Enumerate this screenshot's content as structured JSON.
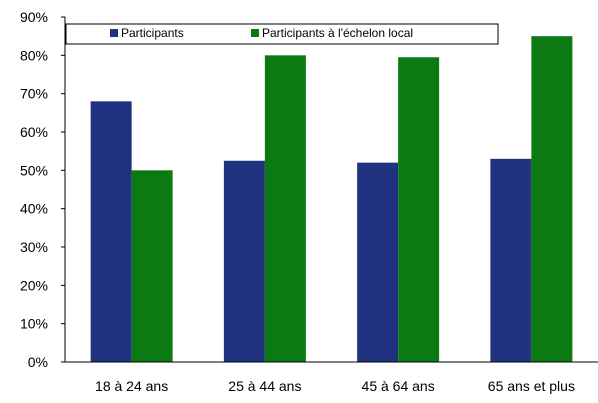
{
  "chart_data": {
    "type": "bar",
    "categories": [
      "18 à 24 ans",
      "25 à 44 ans",
      "45 à 64 ans",
      "65 ans et plus"
    ],
    "series": [
      {
        "name": "Participants",
        "values": [
          68,
          52.5,
          52,
          53
        ],
        "color": "#1f3380"
      },
      {
        "name": "Participants à l'échelon local",
        "values": [
          50,
          80,
          79.5,
          85
        ],
        "color": "#0b7a12"
      }
    ],
    "ylim": [
      0,
      90
    ],
    "yticks": [
      "0%",
      "10%",
      "20%",
      "30%",
      "40%",
      "50%",
      "60%",
      "70%",
      "80%",
      "90%"
    ],
    "grid": false,
    "legend_position": "top"
  }
}
